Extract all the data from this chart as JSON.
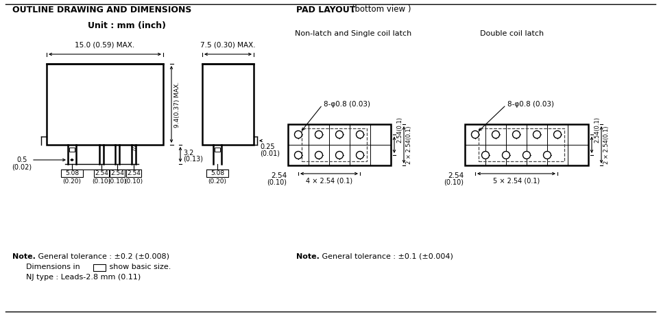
{
  "title_left": "OUTLINE DRAWING AND DIMENSIONS",
  "title_right": "PAD LAYOUT",
  "title_right_suffix": " (bottom view )",
  "unit_label": "Unit : mm (inch)",
  "note_left_bold": "Note.",
  "note_left_text1": " General tolerance : ±0.2 (±0.008)",
  "note_left_text2": "Dimensions in       show basic size.",
  "note_left_text3": "NJ type : Leads-2.8 mm (0.11)",
  "note_right_bold": "Note.",
  "note_right_text": " General tolerance : ±0.1 (±0.004)",
  "non_latch_label": "Non-latch and Single coil latch",
  "double_coil_label": "Double coil latch",
  "line_color": "#000000",
  "bg_color": "#ffffff"
}
